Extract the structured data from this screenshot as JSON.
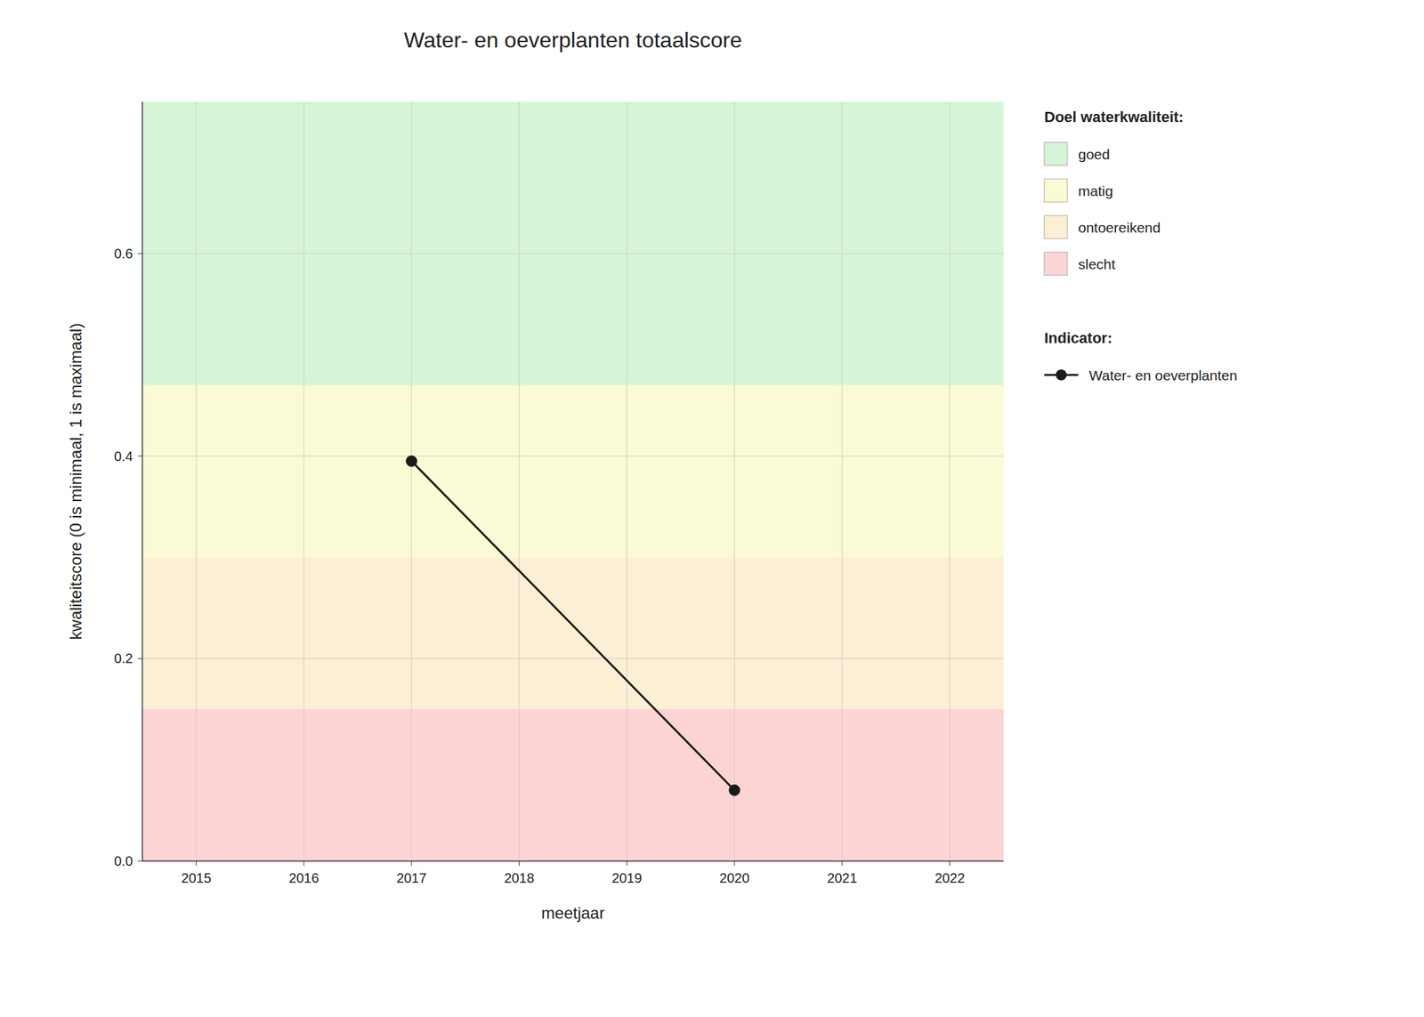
{
  "chart_data": {
    "type": "line",
    "title": "Water- en oeverplanten totaalscore",
    "x_label": "meetjaar",
    "y_label": "kwaliteitscore (0 is minimaal, 1 is maximaal)",
    "xlim": [
      2014.5,
      2022.5
    ],
    "ylim": [
      0,
      0.75
    ],
    "xticks": [
      2015,
      2016,
      2017,
      2018,
      2019,
      2020,
      2021,
      2022
    ],
    "yticks": [
      {
        "value": 0.0,
        "label": "0.0"
      },
      0.2,
      0.4,
      0.6
    ],
    "x": [
      2017,
      2020
    ],
    "series": [
      {
        "name": "Water- en oeverplanten",
        "color": "#1a1a1a",
        "marker": "circle",
        "line_style": "solid",
        "values": [
          0.395,
          0.07
        ]
      }
    ],
    "bands_title": "Doel waterkwaliteit:",
    "bands": [
      {
        "label": "goed",
        "from": 0.47,
        "to": 0.75,
        "color": "#d6f5d6"
      },
      {
        "label": "matig",
        "from": 0.3,
        "to": 0.47,
        "color": "#fafad4"
      },
      {
        "label": "ontoereikend",
        "from": 0.15,
        "to": 0.3,
        "color": "#fdefd4"
      },
      {
        "label": "slecht",
        "from": 0.0,
        "to": 0.15,
        "color": "#fdd4d4"
      }
    ],
    "legend_title": "Indicator:",
    "grid": true,
    "legend": "right"
  }
}
